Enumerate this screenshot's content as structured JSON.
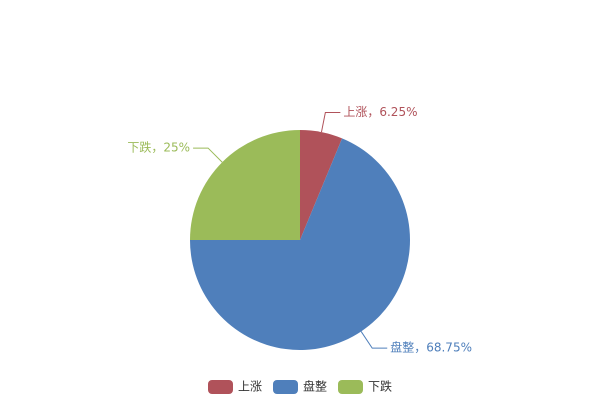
{
  "chart_data": {
    "type": "pie",
    "categories": [
      "上涨",
      "盘整",
      "下跌"
    ],
    "values": [
      6.25,
      68.75,
      25
    ],
    "value_labels": [
      "上涨，6.25%",
      "盘整，68.75%",
      "下跌，25%"
    ],
    "colors": [
      "#b0525a",
      "#4f7fbb",
      "#9bbb59"
    ],
    "legend": "bottom"
  }
}
